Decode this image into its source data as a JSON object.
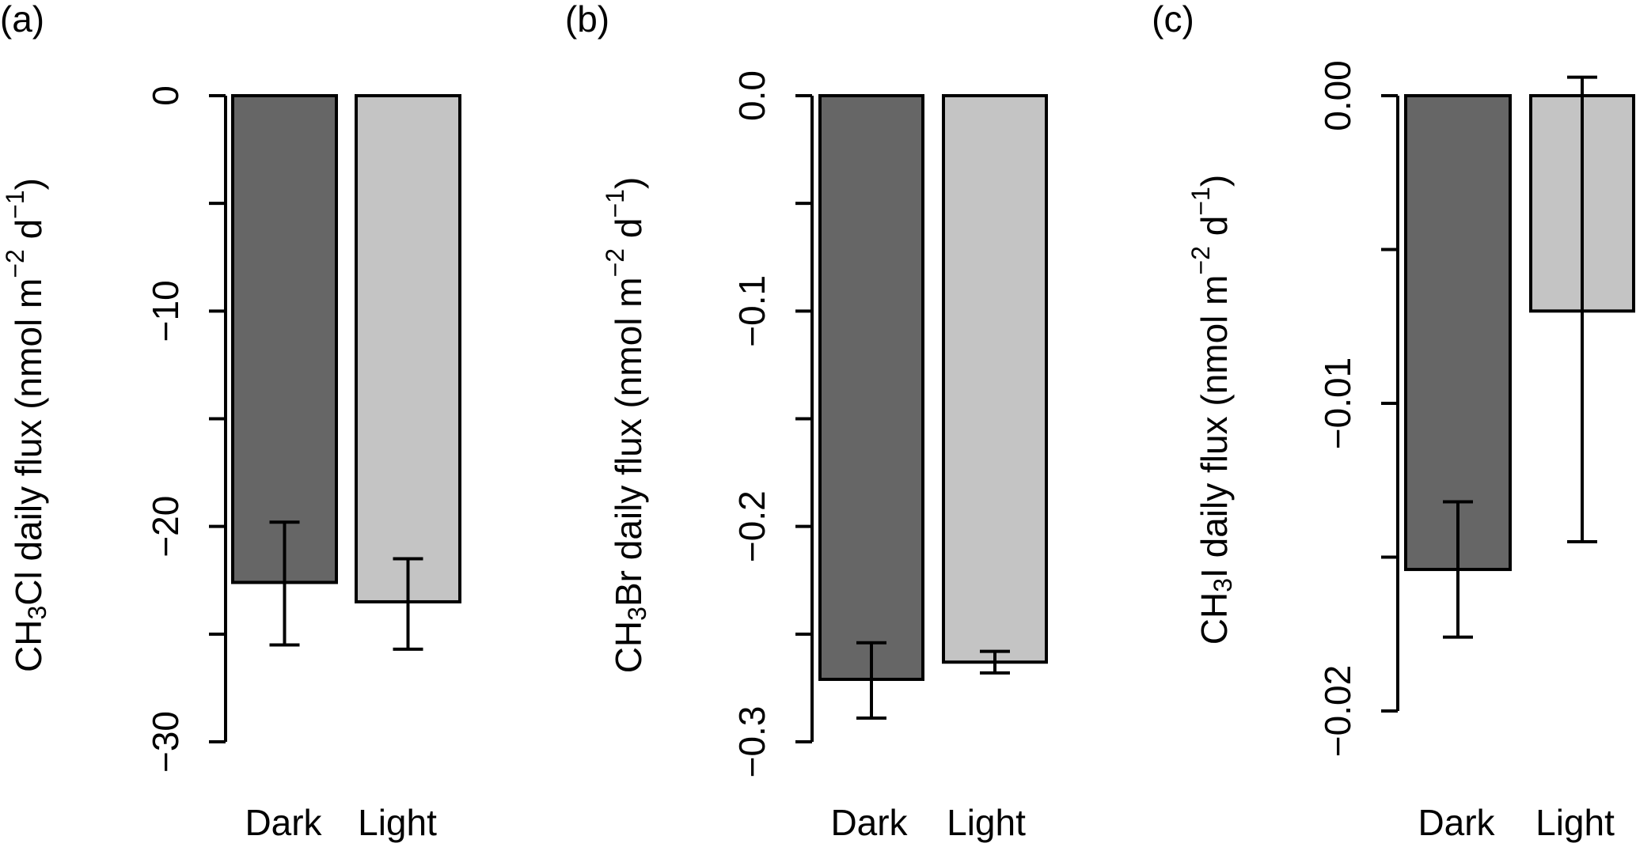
{
  "colors": {
    "Dark": "#666666",
    "Light": "#c4c4c4",
    "outline": "#000000"
  },
  "chart_data": [
    {
      "type": "bar",
      "panel_label": "(a)",
      "ylabel": {
        "prefix": "CH",
        "sub": "3",
        "suffix": "Cl daily flux (nmol m",
        "sup1": "−2",
        "mid": " d",
        "sup2": "−1",
        "end": ")"
      },
      "categories": [
        "Dark",
        "Light"
      ],
      "values": [
        -22.6,
        -23.5
      ],
      "error_low": [
        -25.5,
        -25.7
      ],
      "error_high": [
        -19.8,
        -21.5
      ],
      "ylim": [
        -30,
        0
      ],
      "ticks": [
        0,
        -5,
        -10,
        -15,
        -20,
        -25,
        -30
      ],
      "tick_labels": [
        "0",
        "",
        "−10",
        "",
        "−20",
        "",
        "−30"
      ]
    },
    {
      "type": "bar",
      "panel_label": "(b)",
      "ylabel": {
        "prefix": "CH",
        "sub": "3",
        "suffix": "Br daily flux (nmol m",
        "sup1": "−2",
        "mid": " d",
        "sup2": "−1",
        "end": ")"
      },
      "categories": [
        "Dark",
        "Light"
      ],
      "values": [
        -0.271,
        -0.263
      ],
      "error_low": [
        -0.289,
        -0.268
      ],
      "error_high": [
        -0.254,
        -0.258
      ],
      "ylim": [
        -0.3,
        0
      ],
      "ticks": [
        0,
        -0.05,
        -0.1,
        -0.15,
        -0.2,
        -0.25,
        -0.3
      ],
      "tick_labels": [
        "0.0",
        "",
        "−0.1",
        "",
        "−0.2",
        "",
        "−0.3"
      ]
    },
    {
      "type": "bar",
      "panel_label": "(c)",
      "ylabel": {
        "prefix": "CH",
        "sub": "3",
        "suffix": "I daily flux (nmol m",
        "sup1": "−2",
        "mid": " d",
        "sup2": "−1",
        "end": ")"
      },
      "categories": [
        "Dark",
        "Light"
      ],
      "values": [
        -0.0154,
        -0.007
      ],
      "error_low": [
        -0.0176,
        -0.0145
      ],
      "error_high": [
        -0.0132,
        0.0006
      ],
      "ylim": [
        -0.02,
        0
      ],
      "ticks": [
        0,
        -0.005,
        -0.01,
        -0.015,
        -0.02
      ],
      "tick_labels": [
        "0.00",
        "",
        "−0.01",
        "",
        "−0.02"
      ]
    }
  ]
}
